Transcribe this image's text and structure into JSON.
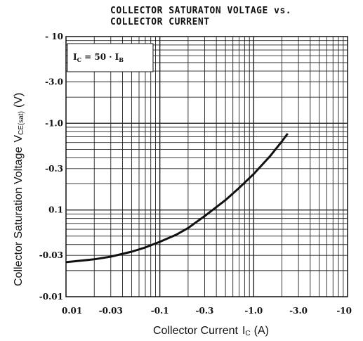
{
  "chart_data": {
    "type": "line",
    "title_line1": "COLLECTOR SATURATON VOLTAGE vs.",
    "title_line2": "COLLECTOR CURRENT",
    "xlabel": "Collector Current",
    "xlabel_symbol": "I",
    "xlabel_symbol_sub": "C",
    "xlabel_unit": "(A)",
    "ylabel": "Collector Saturation Voltage",
    "ylabel_symbol": "V",
    "ylabel_symbol_sub": "CE(sat)",
    "ylabel_unit": "(V)",
    "x_scale": "log",
    "y_scale": "log",
    "xlim": [
      0.01,
      10
    ],
    "ylim": [
      0.01,
      10
    ],
    "grid": true,
    "x_ticks": [
      {
        "value": 0.01,
        "label": "0.01"
      },
      {
        "value": 0.03,
        "label": "-0.03"
      },
      {
        "value": 0.1,
        "label": "-0.1"
      },
      {
        "value": 0.3,
        "label": "-0.3"
      },
      {
        "value": 1,
        "label": "-1.0"
      },
      {
        "value": 3,
        "label": "-3.0"
      },
      {
        "value": 10,
        "label": "-10"
      }
    ],
    "y_ticks": [
      {
        "value": 10,
        "label": "- 10"
      },
      {
        "value": 3,
        "label": "-3.0"
      },
      {
        "value": 1,
        "label": "-1.0"
      },
      {
        "value": 0.3,
        "label": "-0.3"
      },
      {
        "value": 0.1,
        "label": "0.1"
      },
      {
        "value": 0.03,
        "label": "-0.03"
      },
      {
        "value": 0.01,
        "label": "-0.01"
      }
    ],
    "annotation": {
      "main": "I",
      "main_sub": "C",
      "eq": " = 50 · I",
      "eq_sub": "B"
    },
    "series": [
      {
        "x": [
          0.01,
          0.02,
          0.03,
          0.05,
          0.07,
          0.1,
          0.15,
          0.2,
          0.3,
          0.5,
          0.7,
          1.0,
          1.5,
          2.0,
          2.3
        ],
        "y": [
          0.025,
          0.027,
          0.029,
          0.033,
          0.037,
          0.043,
          0.052,
          0.062,
          0.085,
          0.13,
          0.18,
          0.26,
          0.42,
          0.62,
          0.76
        ]
      }
    ]
  }
}
